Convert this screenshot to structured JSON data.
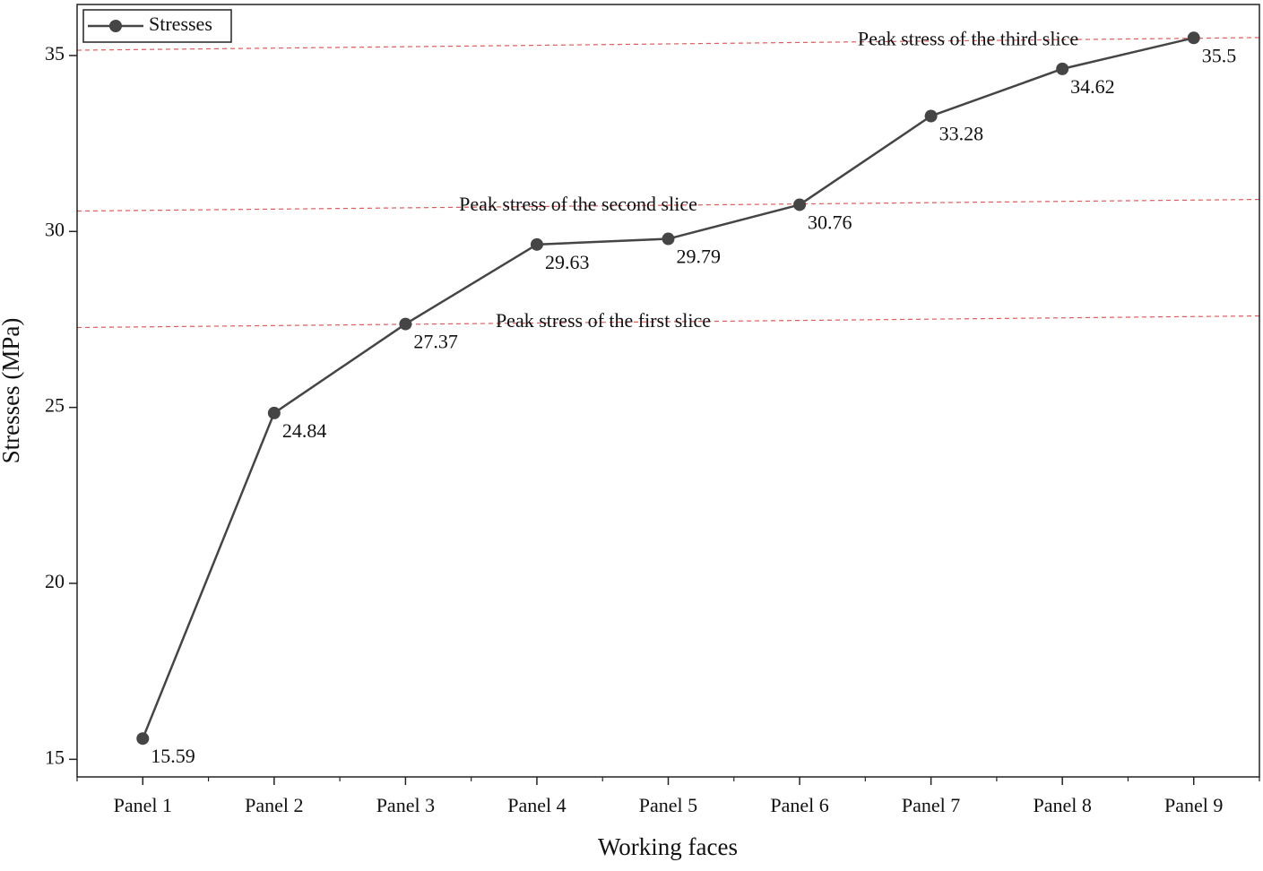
{
  "chart_data": {
    "type": "line",
    "x_label": "Working faces",
    "y_label": "Stresses (MPa)",
    "categories": [
      "Panel 1",
      "Panel 2",
      "Panel 3",
      "Panel 4",
      "Panel 5",
      "Panel 6",
      "Panel 7",
      "Panel 8",
      "Panel 9"
    ],
    "series": [
      {
        "name": "Stresses",
        "color": "#454545",
        "values": [
          15.59,
          24.84,
          27.37,
          29.63,
          29.79,
          30.76,
          33.28,
          34.62,
          35.5
        ]
      }
    ],
    "ylim": [
      14.5,
      36.45
    ],
    "yticks": [
      15,
      20,
      25,
      30,
      35
    ],
    "legend": "top-left",
    "reference_lines": [
      {
        "label": "Peak stress of the first slice",
        "values": [
          27.27,
          27.6
        ],
        "color": "#e05a5a"
      },
      {
        "label": "Peak stress of the second slice",
        "values": [
          30.58,
          30.91
        ],
        "color": "#e05a5a"
      },
      {
        "label": "Peak stress of the third slice",
        "values": [
          35.15,
          35.51
        ],
        "color": "#e05a5a"
      }
    ]
  }
}
